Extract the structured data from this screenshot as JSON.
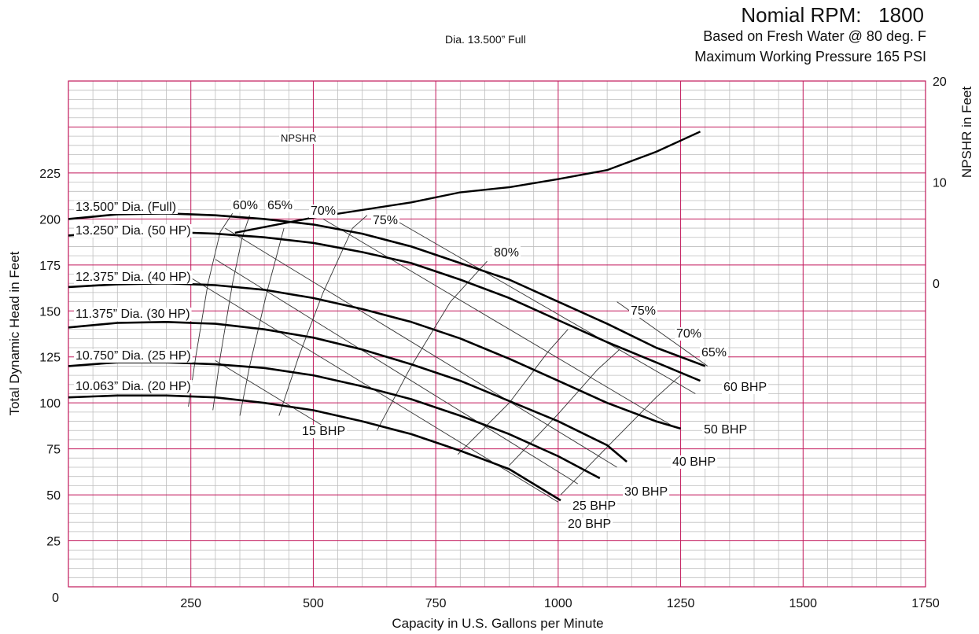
{
  "header": {
    "rpm_label": "Nomial RPM:",
    "rpm_value": "1800",
    "fluid_note": "Based on Fresh Water @ 80 deg. F",
    "pressure_note": "Maximum Working Pressure 165 PSI",
    "diameter_note": "Dia. 13.500” Full"
  },
  "colors": {
    "major_grid": "#c2185b",
    "minor_grid": "#bdbdbd",
    "head_curve": "#000000",
    "efficiency_line": "#333333",
    "bhp_line": "#333333"
  },
  "chart_data": {
    "type": "line",
    "title": "",
    "xlabel": "Capacity in U.S. Gallons per Minute",
    "ylabel": "Total Dynamic Head in Feet",
    "y2label": "NPSHR in Feet",
    "xlim": [
      0,
      1750
    ],
    "ylim": [
      0,
      275
    ],
    "y2lim": [
      -30,
      20
    ],
    "grid": true,
    "x_ticks": [
      "0",
      "250",
      "500",
      "750",
      "1000",
      "1250",
      "1500",
      "1750"
    ],
    "y_ticks": [
      "25",
      "50",
      "75",
      "100",
      "125",
      "150",
      "175",
      "200",
      "225"
    ],
    "y2_ticks": [
      "0",
      "10",
      "20"
    ],
    "head_curves": [
      {
        "label": "13.500” Dia. (Full)",
        "points": [
          [
            0,
            200
          ],
          [
            100,
            202.5
          ],
          [
            200,
            203
          ],
          [
            300,
            202
          ],
          [
            400,
            200
          ],
          [
            500,
            197
          ],
          [
            600,
            192
          ],
          [
            700,
            185
          ],
          [
            800,
            176
          ],
          [
            900,
            167
          ],
          [
            1000,
            155
          ],
          [
            1100,
            143
          ],
          [
            1200,
            130
          ],
          [
            1300,
            120
          ]
        ]
      },
      {
        "label": "13.250” Dia. (50 HP)",
        "points": [
          [
            0,
            191
          ],
          [
            100,
            193
          ],
          [
            200,
            193
          ],
          [
            300,
            192
          ],
          [
            400,
            190
          ],
          [
            500,
            187
          ],
          [
            600,
            182
          ],
          [
            700,
            176
          ],
          [
            800,
            167
          ],
          [
            900,
            157
          ],
          [
            1000,
            145
          ],
          [
            1100,
            133
          ],
          [
            1200,
            122
          ],
          [
            1290,
            112
          ]
        ]
      },
      {
        "label": "12.375” Dia. (40 HP)",
        "points": [
          [
            0,
            163
          ],
          [
            100,
            164.5
          ],
          [
            200,
            165
          ],
          [
            300,
            164
          ],
          [
            400,
            161.5
          ],
          [
            500,
            157
          ],
          [
            600,
            151
          ],
          [
            700,
            144
          ],
          [
            800,
            135
          ],
          [
            900,
            124
          ],
          [
            1000,
            112
          ],
          [
            1100,
            100
          ],
          [
            1200,
            90
          ],
          [
            1250,
            86
          ]
        ]
      },
      {
        "label": "11.375” Dia. (30 HP)",
        "points": [
          [
            0,
            141
          ],
          [
            100,
            143.5
          ],
          [
            200,
            144
          ],
          [
            300,
            143
          ],
          [
            400,
            140
          ],
          [
            500,
            135.5
          ],
          [
            600,
            129
          ],
          [
            700,
            121
          ],
          [
            800,
            112
          ],
          [
            900,
            101
          ],
          [
            1000,
            90
          ],
          [
            1100,
            77
          ],
          [
            1140,
            68
          ]
        ]
      },
      {
        "label": "10.750” Dia. (25 HP)",
        "points": [
          [
            0,
            120
          ],
          [
            100,
            122
          ],
          [
            200,
            122
          ],
          [
            300,
            121
          ],
          [
            400,
            119
          ],
          [
            500,
            115
          ],
          [
            600,
            109
          ],
          [
            700,
            102
          ],
          [
            800,
            93
          ],
          [
            900,
            83
          ],
          [
            1000,
            71
          ],
          [
            1085,
            59
          ]
        ]
      },
      {
        "label": "10.063” Dia. (20 HP)",
        "points": [
          [
            0,
            103
          ],
          [
            100,
            104
          ],
          [
            200,
            104
          ],
          [
            300,
            103
          ],
          [
            400,
            100
          ],
          [
            500,
            96
          ],
          [
            600,
            90
          ],
          [
            700,
            83
          ],
          [
            800,
            74
          ],
          [
            900,
            64
          ],
          [
            1005,
            47
          ]
        ]
      }
    ],
    "npshr": {
      "label": "NPSHR",
      "points": [
        [
          340,
          5
        ],
        [
          500,
          6.5
        ],
        [
          700,
          8
        ],
        [
          800,
          9
        ],
        [
          900,
          9.5
        ],
        [
          1000,
          10.3
        ],
        [
          1100,
          11.2
        ],
        [
          1200,
          13
        ],
        [
          1290,
          15
        ]
      ]
    },
    "efficiency_lines": [
      {
        "label": "60%",
        "points": [
          [
            245,
            98
          ],
          [
            260,
            125
          ],
          [
            285,
            165
          ],
          [
            310,
            193
          ],
          [
            335,
            203
          ]
        ]
      },
      {
        "label": "65%",
        "points": [
          [
            295,
            96
          ],
          [
            310,
            125
          ],
          [
            335,
            165
          ],
          [
            355,
            190
          ],
          [
            370,
            202
          ]
        ]
      },
      {
        "label": "70%",
        "points": [
          [
            350,
            93
          ],
          [
            370,
            120
          ],
          [
            405,
            160
          ],
          [
            440,
            195
          ]
        ]
      },
      {
        "label": "75%",
        "points": [
          [
            430,
            93
          ],
          [
            470,
            125
          ],
          [
            520,
            160
          ],
          [
            580,
            195
          ],
          [
            610,
            202
          ]
        ]
      },
      {
        "label": "80%",
        "points": [
          [
            630,
            85
          ],
          [
            700,
            120
          ],
          [
            780,
            155
          ],
          [
            855,
            177
          ]
        ]
      },
      {
        "label": "75%",
        "points": [
          [
            795,
            72
          ],
          [
            900,
            100
          ],
          [
            980,
            128
          ],
          [
            1020,
            140
          ]
        ]
      },
      {
        "label": "70%",
        "points": [
          [
            900,
            66
          ],
          [
            1000,
            94
          ],
          [
            1080,
            118
          ],
          [
            1125,
            129
          ]
        ]
      },
      {
        "label": "65%",
        "points": [
          [
            1005,
            50
          ],
          [
            1100,
            76
          ],
          [
            1200,
            103
          ],
          [
            1250,
            115
          ]
        ]
      }
    ],
    "bhp_lines": [
      {
        "label": "15 BHP",
        "points": [
          [
            560,
            81
          ],
          [
            300,
            123
          ]
        ]
      },
      {
        "label": "20 BHP",
        "points": [
          [
            1000,
            46
          ],
          [
            250,
            168
          ]
        ]
      },
      {
        "label": "25 BHP",
        "points": [
          [
            1040,
            56
          ],
          [
            300,
            178
          ]
        ]
      },
      {
        "label": "30 BHP",
        "points": [
          [
            1120,
            65
          ],
          [
            320,
            195
          ]
        ]
      },
      {
        "label": "40 BHP",
        "points": [
          [
            1230,
            88
          ],
          [
            520,
            200
          ]
        ]
      },
      {
        "label": "50 BHP",
        "points": [
          [
            1280,
            105
          ],
          [
            650,
            202
          ]
        ]
      },
      {
        "label": "60 BHP",
        "points": [
          [
            1305,
            120
          ],
          [
            1120,
            155
          ]
        ]
      }
    ]
  }
}
